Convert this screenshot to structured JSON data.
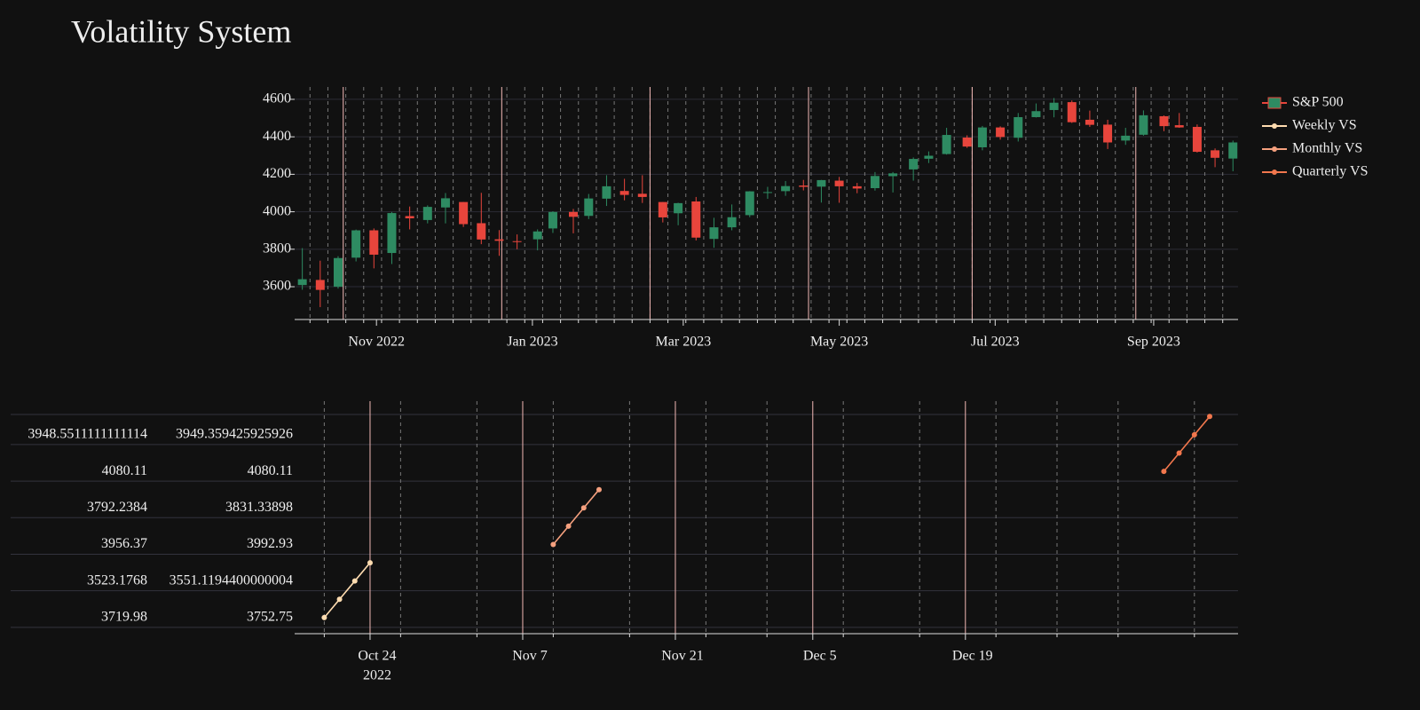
{
  "chart_data": [
    {
      "type": "candlestick",
      "title": "Volatility System",
      "xlim": [
        "2022-09-30",
        "2023-10-04"
      ],
      "ylim": [
        3425,
        4666
      ],
      "yticks": [
        3600,
        3800,
        4000,
        4200,
        4400,
        4600
      ],
      "xticks": [
        {
          "value": "2022-11-01",
          "label": "Nov 2022"
        },
        {
          "value": "2023-01-01",
          "label": "Jan 2023"
        },
        {
          "value": "2023-03-01",
          "label": "Mar 2023"
        },
        {
          "value": "2023-05-01",
          "label": "May 2023"
        },
        {
          "value": "2023-07-01",
          "label": "Jul 2023"
        },
        {
          "value": "2023-09-01",
          "label": "Sep 2023"
        }
      ],
      "xminor": [
        "2022-10-06",
        "2022-10-13",
        "2022-10-20",
        "2022-10-27",
        "2022-11-03",
        "2022-11-10",
        "2022-11-17",
        "2022-11-24",
        "2022-12-01",
        "2022-12-08",
        "2022-12-15",
        "2022-12-22",
        "2022-12-29",
        "2023-01-05",
        "2023-01-12",
        "2023-01-19",
        "2023-01-26",
        "2023-02-02",
        "2023-02-09",
        "2023-02-16",
        "2023-02-23",
        "2023-03-02",
        "2023-03-09",
        "2023-03-16",
        "2023-03-23",
        "2023-03-30",
        "2023-04-06",
        "2023-04-13",
        "2023-04-20",
        "2023-04-27",
        "2023-05-04",
        "2023-05-11",
        "2023-05-18",
        "2023-05-25",
        "2023-06-01",
        "2023-06-08",
        "2023-06-15",
        "2023-06-22",
        "2023-06-29",
        "2023-07-06",
        "2023-07-13",
        "2023-07-20",
        "2023-07-27",
        "2023-08-03",
        "2023-08-10",
        "2023-08-17",
        "2023-08-24",
        "2023-08-31",
        "2023-09-07",
        "2023-09-14",
        "2023-09-21",
        "2023-09-28"
      ],
      "vlines": [
        "2022-10-19",
        "2022-12-20",
        "2023-02-16",
        "2023-04-19",
        "2023-06-22",
        "2023-08-25"
      ],
      "vline_color": "#f2b8b5",
      "grid": true,
      "series": [
        {
          "name": "S&P 500",
          "up_color": "#2e8b62",
          "down_color": "#e8453c",
          "dates": [
            "2022-10-03",
            "2022-10-10",
            "2022-10-17",
            "2022-10-24",
            "2022-10-31",
            "2022-11-07",
            "2022-11-14",
            "2022-11-21",
            "2022-11-28",
            "2022-12-05",
            "2022-12-12",
            "2022-12-19",
            "2022-12-26",
            "2023-01-03",
            "2023-01-09",
            "2023-01-17",
            "2023-01-23",
            "2023-01-30",
            "2023-02-06",
            "2023-02-13",
            "2023-02-21",
            "2023-02-27",
            "2023-03-06",
            "2023-03-13",
            "2023-03-20",
            "2023-03-27",
            "2023-04-03",
            "2023-04-10",
            "2023-04-17",
            "2023-04-24",
            "2023-05-01",
            "2023-05-08",
            "2023-05-15",
            "2023-05-22",
            "2023-05-30",
            "2023-06-05",
            "2023-06-12",
            "2023-06-20",
            "2023-06-26",
            "2023-07-03",
            "2023-07-10",
            "2023-07-17",
            "2023-07-24",
            "2023-07-31",
            "2023-08-07",
            "2023-08-14",
            "2023-08-21",
            "2023-08-28",
            "2023-09-05",
            "2023-09-11",
            "2023-09-18",
            "2023-09-25",
            "2023-10-02"
          ],
          "open": [
            3609,
            3636,
            3600,
            3755,
            3901,
            3780,
            3977,
            3956,
            4023,
            4052,
            3939,
            3853,
            3843,
            3853,
            3911,
            3999,
            3978,
            4070,
            4111,
            4096,
            4052,
            3992,
            4055,
            3855,
            3917,
            3982,
            4102,
            4110,
            4140,
            4134,
            4166,
            4136,
            4126,
            4190,
            4226,
            4283,
            4308,
            4396,
            4344,
            4450,
            4395,
            4505,
            4543,
            4585,
            4491,
            4465,
            4380,
            4411,
            4510,
            4462,
            4453,
            4328,
            4284
          ],
          "high": [
            3806,
            3739,
            3763,
            3905,
            3911,
            3999,
            4028,
            4034,
            4100,
            4052,
            4101,
            3902,
            3879,
            3906,
            4003,
            4015,
            4095,
            4195,
            4176,
            4195,
            4052,
            4048,
            4079,
            3968,
            4039,
            4110,
            4133,
            4164,
            4170,
            4170,
            4186,
            4154,
            4212,
            4212,
            4290,
            4322,
            4448,
            4408,
            4458,
            4456,
            4527,
            4578,
            4607,
            4594,
            4540,
            4491,
            4448,
            4541,
            4514,
            4527,
            4466,
            4338,
            4380
          ],
          "low": [
            3584,
            3491,
            3590,
            3735,
            3698,
            3721,
            3906,
            3938,
            3938,
            3919,
            3827,
            3765,
            3800,
            3794,
            3887,
            3885,
            3961,
            4031,
            4061,
            4047,
            3943,
            3928,
            3847,
            3808,
            3901,
            3971,
            4069,
            4085,
            4114,
            4049,
            4048,
            4099,
            4113,
            4103,
            4166,
            4260,
            4305,
            4341,
            4328,
            4385,
            4375,
            4503,
            4504,
            4474,
            4453,
            4335,
            4357,
            4406,
            4430,
            4448,
            4316,
            4238,
            4216
          ],
          "close": [
            3640,
            3583,
            3753,
            3901,
            3771,
            3993,
            3965,
            4026,
            4072,
            3934,
            3852,
            3845,
            3840,
            3895,
            3999,
            3973,
            4071,
            4136,
            4090,
            4079,
            3970,
            4046,
            3862,
            3917,
            3971,
            4109,
            4105,
            4137,
            4133,
            4169,
            4136,
            4124,
            4191,
            4205,
            4282,
            4299,
            4410,
            4348,
            4450,
            4399,
            4505,
            4537,
            4582,
            4478,
            4464,
            4370,
            4406,
            4515,
            4457,
            4450,
            4320,
            4288,
            4370
          ]
        }
      ]
    },
    {
      "type": "line",
      "xlim": [
        -4.94,
        56.86
      ],
      "ylim": [
        -0.44,
        5.92
      ],
      "xticks": [
        {
          "value": 0,
          "label": "Oct 24"
        },
        {
          "value": 10,
          "label": "Nov 7"
        },
        {
          "value": 20,
          "label": "Nov 21"
        },
        {
          "value": 29,
          "label": "Dec 5"
        },
        {
          "value": 39,
          "label": "Dec 19"
        }
      ],
      "xtick_year": "2022",
      "xminor": [
        -3,
        2,
        7,
        12,
        17,
        22,
        26,
        31,
        36,
        41,
        45,
        49,
        54
      ],
      "vline_color": "#f2b8b5",
      "yticks": [
        {
          "value": 0,
          "label": "3752.75"
        },
        {
          "value": 1,
          "label": "3551.1194400000004"
        },
        {
          "value": 2,
          "label": "3992.93"
        },
        {
          "value": 3,
          "label": "3831.33898"
        },
        {
          "value": 4,
          "label": "4080.11"
        },
        {
          "value": 5,
          "label": "3949.359425925926"
        }
      ],
      "yticks_left": [
        "3719.98",
        "3523.1768",
        "3956.37",
        "3792.2384",
        "4080.11",
        "3948.5511111111114"
      ],
      "series": [
        {
          "name": "Weekly VS",
          "color": "#ffdcb0",
          "x": [
            -3,
            -2,
            -1,
            0
          ],
          "values": [
            0,
            0.5,
            1,
            1.5
          ]
        },
        {
          "name": "Monthly VS",
          "color": "#f5a07e",
          "x": [
            12,
            13,
            14,
            15
          ],
          "values": [
            2,
            2.5,
            3,
            3.5
          ]
        },
        {
          "name": "Quarterly VS",
          "color": "#f2774d",
          "x": [
            52,
            53,
            54,
            55
          ],
          "values": [
            4,
            4.5,
            5,
            5.5
          ]
        }
      ]
    }
  ]
}
